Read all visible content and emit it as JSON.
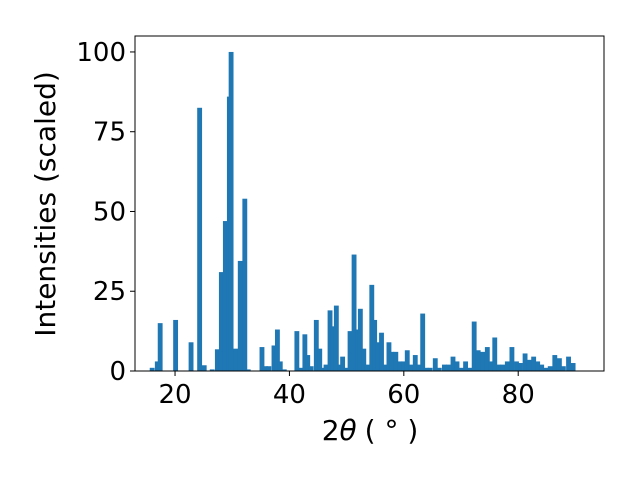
{
  "chart_data": {
    "type": "bar",
    "xlabel_prefix": "2",
    "xlabel_symbol": "θ",
    "xlabel_unit": "( ° )",
    "ylabel": "Intensities (scaled)",
    "xlim": [
      13,
      95
    ],
    "ylim": [
      0,
      105
    ],
    "bar_width": 0.85,
    "color": "#1f77b4",
    "xticks": [
      20,
      40,
      60,
      80
    ],
    "yticks": [
      0,
      25,
      50,
      75,
      100
    ],
    "grid": false,
    "x": [
      16.0,
      16.9,
      17.4,
      20.1,
      22.8,
      24.3,
      25.1,
      26.5,
      27.4,
      28.1,
      28.8,
      29.5,
      29.8,
      30.6,
      31.4,
      32.2,
      32.8,
      35.2,
      35.8,
      36.4,
      37.3,
      37.9,
      38.4,
      39.1,
      41.3,
      42.0,
      42.7,
      43.2,
      43.8,
      44.7,
      45.3,
      45.9,
      46.4,
      47.1,
      47.6,
      48.2,
      48.8,
      49.3,
      49.9,
      50.6,
      51.3,
      51.9,
      52.4,
      53.0,
      53.6,
      54.4,
      54.9,
      55.5,
      56.1,
      56.8,
      57.4,
      57.9,
      58.6,
      59.3,
      60.0,
      60.6,
      61.3,
      62.0,
      62.6,
      63.3,
      63.9,
      64.6,
      65.5,
      66.2,
      67.1,
      67.8,
      68.6,
      69.3,
      70.1,
      70.8,
      71.6,
      72.3,
      73.0,
      73.8,
      74.6,
      75.3,
      75.9,
      76.6,
      77.3,
      78.1,
      78.9,
      79.7,
      80.4,
      81.2,
      81.9,
      82.7,
      83.4,
      84.1,
      84.8,
      85.6,
      86.4,
      87.2,
      87.9,
      88.8,
      89.6
    ],
    "values": [
      1.0,
      3.0,
      15.0,
      16.0,
      9.0,
      82.5,
      1.8,
      0.5,
      6.8,
      31.0,
      47.0,
      86.0,
      100.0,
      7.0,
      34.5,
      54.0,
      0.5,
      7.5,
      1.5,
      1.5,
      8.0,
      13.0,
      3.0,
      0.5,
      12.5,
      1.0,
      11.5,
      5.0,
      1.5,
      16.0,
      7.0,
      1.0,
      2.0,
      19.0,
      14.0,
      20.5,
      2.0,
      4.5,
      1.0,
      12.5,
      36.5,
      13.0,
      19.5,
      7.0,
      2.0,
      27.0,
      16.0,
      9.0,
      12.0,
      2.0,
      9.0,
      6.0,
      6.0,
      3.0,
      3.0,
      6.5,
      2.0,
      5.0,
      2.0,
      18.0,
      1.0,
      1.0,
      4.0,
      1.0,
      2.0,
      2.0,
      4.5,
      3.0,
      1.0,
      3.0,
      1.0,
      15.5,
      6.5,
      6.0,
      7.5,
      3.0,
      10.5,
      2.0,
      2.0,
      3.0,
      7.5,
      3.0,
      2.5,
      5.5,
      3.5,
      4.5,
      3.0,
      2.0,
      1.0,
      1.5,
      5.0,
      4.0,
      1.5,
      4.5,
      2.5
    ]
  }
}
